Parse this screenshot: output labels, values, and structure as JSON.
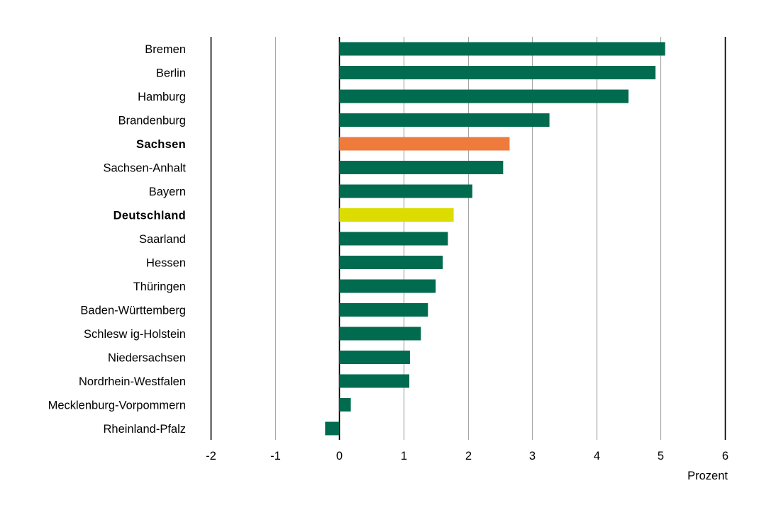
{
  "chart_data": {
    "type": "bar",
    "orientation": "horizontal",
    "categories": [
      "Bremen",
      "Berlin",
      "Hamburg",
      "Brandenburg",
      "Sachsen",
      "Sachsen-Anhalt",
      "Bayern",
      "Deutschland",
      "Saarland",
      "Hessen",
      "Thüringen",
      "Baden-Württemberg",
      "Schlesw ig-Holstein",
      "Niedersachsen",
      "Nordrhein-Westfalen",
      "Mecklenburg-Vorpommern",
      "Rheinland-Pfalz"
    ],
    "values": [
      5.07,
      4.92,
      4.5,
      3.27,
      2.65,
      2.55,
      2.07,
      1.78,
      1.69,
      1.61,
      1.5,
      1.38,
      1.27,
      1.1,
      1.09,
      0.18,
      -0.22
    ],
    "highlight": {
      "Sachsen": "highlight_sachsen",
      "Deutschland": "highlight_deutschland"
    },
    "bold_categories": [
      "Sachsen",
      "Deutschland"
    ],
    "xlim": [
      -2,
      6
    ],
    "xticks": [
      -2,
      -1,
      0,
      1,
      2,
      3,
      4,
      5,
      6
    ],
    "xlabel": "Prozent",
    "grid": true,
    "colors": {
      "default": "#006b4f",
      "highlight_sachsen": "#ee7b3b",
      "highlight_deutschland": "#dcdc00",
      "grid": "#a6a6a6",
      "axis": "#000000"
    }
  }
}
